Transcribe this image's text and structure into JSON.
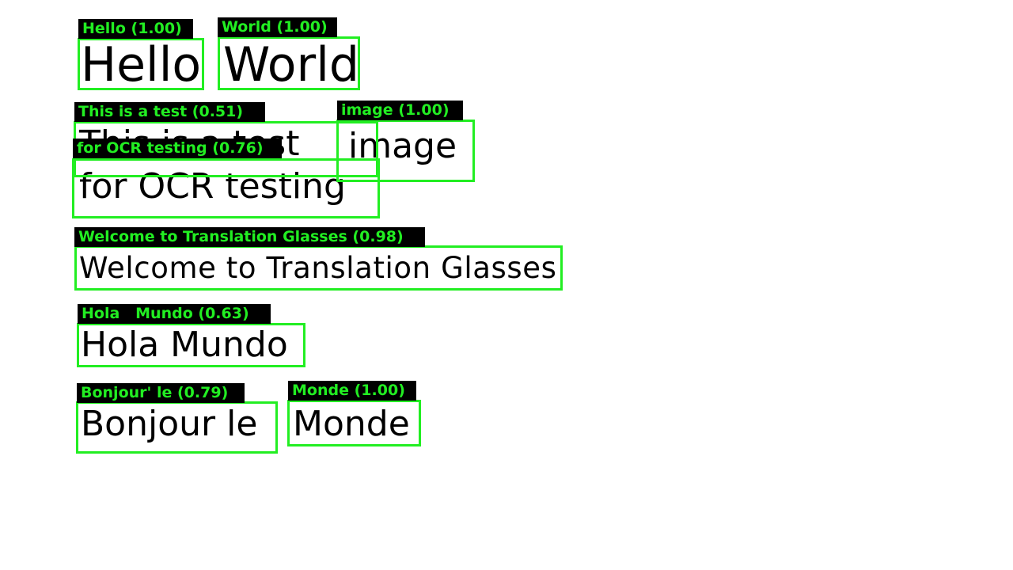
{
  "colors": {
    "background": "#ffffff",
    "text": "#000000",
    "box": "#22ee22",
    "tag_background": "#000000",
    "tag_text": "#22ee22"
  },
  "words": [
    {
      "text": "Hello"
    },
    {
      "text": "World"
    },
    {
      "text": "This is a test"
    },
    {
      "text": "image"
    },
    {
      "text": "for OCR testing"
    },
    {
      "text": "Welcome to Translation Glasses"
    },
    {
      "text": "Hola Mundo"
    },
    {
      "text": "Bonjour le"
    },
    {
      "text": "Monde"
    }
  ],
  "detections": [
    {
      "label": "Hello",
      "confidence": "1.00"
    },
    {
      "label": "World",
      "confidence": "1.00"
    },
    {
      "label": "This is a test",
      "confidence": "0.51"
    },
    {
      "label": "image",
      "confidence": "1.00"
    },
    {
      "label": "for OCR testing",
      "confidence": "0.76"
    },
    {
      "label": "Welcome to Translation Glasses",
      "confidence": "0.98"
    },
    {
      "label": "Hola   Mundo",
      "confidence": "0.63"
    },
    {
      "label": "Bonjour' le",
      "confidence": "0.79"
    },
    {
      "label": "Monde",
      "confidence": "1.00"
    }
  ]
}
